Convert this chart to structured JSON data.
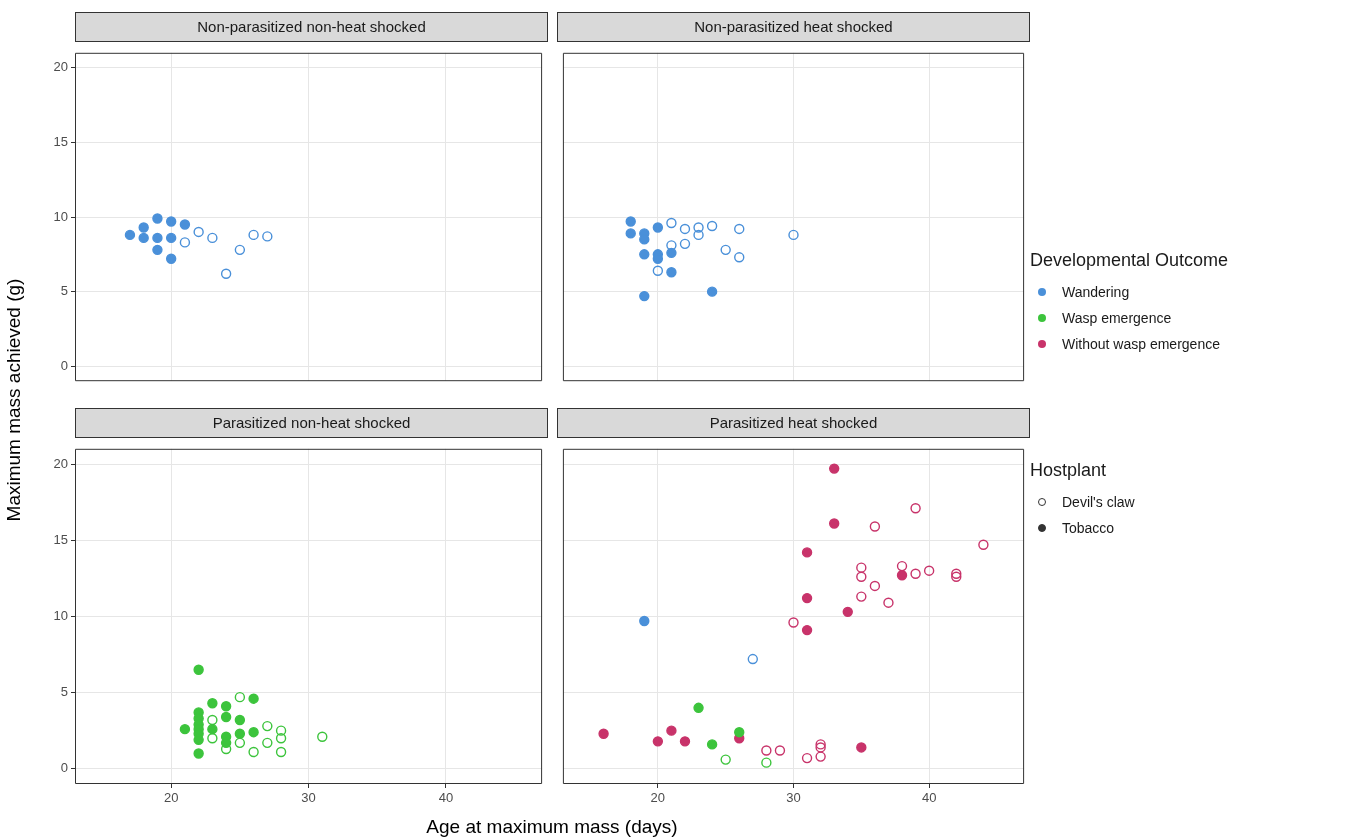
{
  "chart_data": [
    {
      "type": "scatter",
      "title": "Non-parasitized non-heat shocked",
      "ylabel": "Maximum mass achieved (g)",
      "xlim": [
        13,
        47
      ],
      "ylim": [
        -1,
        21
      ],
      "xticks": [
        20,
        30,
        40
      ],
      "yticks": [
        0,
        5,
        10,
        15,
        20
      ],
      "grid": true,
      "tick_labels": "y",
      "marker": "circle",
      "series": [
        {
          "color": "#4a90d9",
          "x": [
            21,
            22,
            23,
            24,
            25,
            26,
            27
          ],
          "values": [
            8.3,
            9.0,
            8.6,
            6.2,
            7.8,
            8.8,
            8.7
          ]
        },
        {
          "color": "#4a90d9",
          "x": [
            17,
            18,
            18,
            19,
            19,
            19,
            20,
            20,
            20,
            21
          ],
          "values": [
            8.8,
            9.3,
            8.6,
            9.9,
            8.6,
            7.8,
            9.7,
            8.6,
            7.2,
            9.5
          ]
        }
      ]
    },
    {
      "type": "scatter",
      "title": "Non-parasitized heat shocked",
      "xlim": [
        13,
        47
      ],
      "ylim": [
        -1,
        21
      ],
      "xticks": [
        20,
        30,
        40
      ],
      "yticks": [
        0,
        5,
        10,
        15,
        20
      ],
      "grid": true,
      "tick_labels": false,
      "marker": "circle",
      "series": [
        {
          "color": "#4a90d9",
          "x": [
            21,
            22,
            23,
            23,
            24,
            26,
            21,
            22,
            20,
            25,
            26,
            30
          ],
          "values": [
            9.6,
            9.2,
            9.3,
            8.8,
            9.4,
            9.2,
            8.1,
            8.2,
            6.4,
            7.8,
            7.3,
            8.8
          ]
        },
        {
          "color": "#4a90d9",
          "x": [
            18,
            18,
            19,
            19,
            20,
            19,
            20,
            20,
            21,
            21,
            19,
            24
          ],
          "values": [
            9.7,
            8.9,
            8.9,
            8.5,
            9.3,
            7.5,
            7.5,
            7.2,
            7.6,
            6.3,
            4.7,
            5.0
          ]
        }
      ]
    },
    {
      "type": "scatter",
      "title": "Parasitized non-heat shocked",
      "xlabel": "Age at maximum mass (days)",
      "xlim": [
        13,
        47
      ],
      "ylim": [
        -1,
        21
      ],
      "xticks": [
        20,
        30,
        40
      ],
      "yticks": [
        0,
        5,
        10,
        15,
        20
      ],
      "grid": true,
      "marker": "circle",
      "series": [
        {
          "color": "#3cc43c",
          "x": [
            23,
            23,
            24,
            25,
            25,
            26,
            27,
            27,
            28,
            28,
            28,
            31
          ],
          "values": [
            3.2,
            2.0,
            1.3,
            4.7,
            1.7,
            1.1,
            2.8,
            1.7,
            2.5,
            2.0,
            1.1,
            2.1
          ]
        },
        {
          "color": "#3cc43c",
          "x": [
            22,
            21,
            22,
            22,
            22,
            22,
            22,
            22,
            22,
            23,
            23,
            24,
            24,
            24,
            24,
            25,
            25,
            26,
            26
          ],
          "values": [
            6.5,
            2.6,
            3.7,
            3.3,
            2.9,
            2.6,
            2.3,
            1.9,
            1.0,
            4.3,
            2.6,
            4.1,
            3.4,
            2.1,
            1.7,
            3.2,
            2.3,
            4.6,
            2.4
          ]
        }
      ]
    },
    {
      "type": "scatter",
      "title": "Parasitized heat shocked",
      "xlim": [
        13,
        47
      ],
      "ylim": [
        -1,
        21
      ],
      "xticks": [
        20,
        30,
        40
      ],
      "yticks": [
        0,
        5,
        10,
        15,
        20
      ],
      "grid": true,
      "tick_labels": "x",
      "marker": "circle",
      "series": [
        {
          "color": "#4a90d9",
          "x": [
            27
          ],
          "values": [
            7.2
          ]
        },
        {
          "color": "#4a90d9",
          "x": [
            19
          ],
          "values": [
            9.7
          ]
        },
        {
          "color": "#3cc43c",
          "x": [
            25,
            28
          ],
          "values": [
            0.6,
            0.4
          ]
        },
        {
          "color": "#3cc43c",
          "x": [
            23,
            24,
            26
          ],
          "values": [
            4.0,
            1.6,
            2.4
          ]
        },
        {
          "color": "#c8336a",
          "x": [
            39,
            36,
            44,
            35,
            35,
            38,
            39,
            40,
            42,
            42,
            36,
            35,
            37,
            30,
            28,
            29,
            31,
            32,
            32,
            32
          ],
          "values": [
            17.1,
            15.9,
            14.7,
            13.2,
            12.6,
            13.3,
            12.8,
            13.0,
            12.8,
            12.6,
            12.0,
            11.3,
            10.9,
            9.6,
            1.2,
            1.2,
            0.7,
            1.6,
            1.4,
            0.8
          ]
        },
        {
          "color": "#c8336a",
          "x": [
            16,
            20,
            21,
            22,
            26,
            33,
            33,
            31,
            31,
            31,
            34,
            38,
            35
          ],
          "values": [
            2.3,
            1.8,
            2.5,
            1.8,
            2.0,
            19.7,
            16.1,
            14.2,
            11.2,
            9.1,
            10.3,
            12.7,
            1.4
          ]
        }
      ]
    },
    {
      "type": "other",
      "legend_title": "Developmental Outcome",
      "categories": [
        "Wandering",
        "Wasp emergence",
        "Without wasp emergence"
      ],
      "colors": [
        "#4a90d9",
        "#3cc43c",
        "#c8336a"
      ]
    },
    {
      "type": "other",
      "legend_title": "Hostplant",
      "categories": [
        "Devil's claw",
        "Tobacco"
      ],
      "colors": [
        "#ffffff",
        "#333333"
      ]
    }
  ]
}
